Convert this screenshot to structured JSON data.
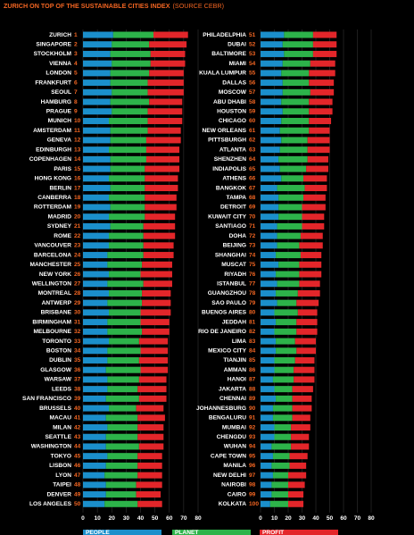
{
  "chart_data": {
    "type": "stacked-barh",
    "title": "ZURICH ON TOP OF THE SUSTAINABLE CITIES INDEX",
    "subtitle": "(SOURCE CEBR)",
    "categories": [
      "ZURICH",
      "SINGAPORE",
      "STOCKHOLM",
      "VIENNA",
      "LONDON",
      "FRANKFURT",
      "SEOUL",
      "HAMBURG",
      "PRAGUE",
      "MUNICH",
      "AMSTERDAM",
      "GENEVA",
      "EDINBURGH",
      "COPENHAGEN",
      "PARIS",
      "HONG KONG",
      "BERLIN",
      "CANBERRA",
      "ROTTERDAM",
      "MADRID",
      "SYDNEY",
      "ROME",
      "VANCOUVER",
      "BARCELONA",
      "MANCHESTER",
      "NEW YORK",
      "WELLINGTON",
      "MONTREAL",
      "ANTWERP",
      "BRISBANE",
      "BIRMINGHAM",
      "MELBOURNE",
      "TORONTO",
      "BOSTON",
      "DUBLIN",
      "GLASGOW",
      "WARSAW",
      "LEEDS",
      "SAN FRANCISCO",
      "BRUSSELS",
      "MACAU",
      "MILAN",
      "SEATTLE",
      "WASHINGTON",
      "TOKYO",
      "LISBON",
      "LYON",
      "TAIPEI",
      "DENVER",
      "LOS ANGELES",
      "PHILADELPHIA",
      "DUBAI",
      "BALTIMORE",
      "MIAMI",
      "KUALA LUMPUR",
      "DALLAS",
      "MOSCOW",
      "ABU DHABI",
      "HOUSTON",
      "CHICAGO",
      "NEW ORLEANS",
      "PITTSBURGH",
      "ATLANTA",
      "SHENZHEN",
      "INDIAPOLIS",
      "ATHENS",
      "BANGKOK",
      "TAMPA",
      "DETROIT",
      "KUWAIT CITY",
      "SANTIAGO",
      "DOHA",
      "BEIJING",
      "SHANGHAI",
      "MUSCAT",
      "RIYADH",
      "ISTANBUL",
      "GUANGZHOU",
      "SAO PAULO",
      "BUENOS AIRES",
      "JEDDAH",
      "RIO DE JANEIRO",
      "LIMA",
      "MEXICO CITY",
      "TIANJIN",
      "AMMAN",
      "HANOI",
      "JAKARTA",
      "CHENNAI",
      "JOHANNESBURG",
      "BENGALURU",
      "MUMBAI",
      "CHENGDU",
      "WUHAN",
      "CAPE TOWN",
      "MANILA",
      "NEW DELHI",
      "NAIROBI",
      "CAIRO",
      "KOLKATA"
    ],
    "ranks": [
      1,
      2,
      3,
      4,
      5,
      6,
      7,
      8,
      9,
      10,
      11,
      12,
      13,
      14,
      15,
      16,
      17,
      18,
      19,
      20,
      21,
      22,
      23,
      24,
      25,
      26,
      27,
      28,
      29,
      30,
      31,
      32,
      33,
      34,
      35,
      36,
      37,
      38,
      39,
      40,
      41,
      42,
      43,
      44,
      45,
      46,
      47,
      48,
      49,
      50,
      51,
      52,
      53,
      54,
      55,
      56,
      57,
      58,
      59,
      60,
      61,
      62,
      63,
      64,
      65,
      66,
      67,
      68,
      69,
      70,
      71,
      72,
      73,
      74,
      75,
      76,
      77,
      78,
      79,
      80,
      81,
      82,
      83,
      84,
      85,
      86,
      87,
      88,
      89,
      90,
      91,
      92,
      93,
      94,
      95,
      96,
      97,
      98,
      99,
      100
    ],
    "series": [
      {
        "name": "PEOPLE",
        "color": "#1b8fcb",
        "values": [
          21,
          20,
          19,
          20,
          19,
          19,
          20,
          19,
          20,
          18,
          19,
          19,
          18,
          19,
          19,
          18,
          19,
          18,
          19,
          18,
          19,
          18,
          18,
          17,
          17,
          18,
          17,
          18,
          17,
          18,
          17,
          17,
          18,
          17,
          17,
          16,
          17,
          17,
          16,
          18,
          16,
          17,
          16,
          16,
          17,
          16,
          15,
          16,
          16,
          15,
          17,
          16,
          17,
          16,
          15,
          16,
          16,
          15,
          16,
          15,
          14,
          15,
          14,
          13,
          14,
          15,
          12,
          13,
          13,
          13,
          12,
          12,
          12,
          11,
          13,
          11,
          12,
          11,
          12,
          10,
          11,
          10,
          11,
          11,
          10,
          10,
          9,
          10,
          11,
          9,
          9,
          10,
          10,
          8,
          9,
          8,
          9,
          8,
          8,
          7
        ]
      },
      {
        "name": "PLANET",
        "color": "#2db34a",
        "values": [
          28,
          26,
          28,
          27,
          27,
          26,
          25,
          27,
          25,
          27,
          26,
          25,
          26,
          25,
          24,
          25,
          24,
          25,
          24,
          25,
          23,
          24,
          24,
          25,
          24,
          22,
          25,
          23,
          24,
          22,
          23,
          24,
          21,
          23,
          22,
          24,
          22,
          21,
          23,
          19,
          22,
          21,
          22,
          23,
          21,
          22,
          23,
          21,
          21,
          23,
          21,
          22,
          21,
          20,
          20,
          19,
          20,
          20,
          19,
          20,
          21,
          19,
          20,
          21,
          19,
          16,
          20,
          18,
          17,
          17,
          18,
          17,
          16,
          18,
          15,
          17,
          16,
          16,
          14,
          17,
          15,
          16,
          14,
          15,
          15,
          14,
          15,
          13,
          12,
          14,
          14,
          12,
          12,
          14,
          12,
          13,
          11,
          12,
          12,
          13
        ]
      },
      {
        "name": "PROFIT",
        "color": "#e3262a",
        "values": [
          24,
          26,
          24,
          24,
          24,
          25,
          25,
          23,
          24,
          24,
          23,
          24,
          23,
          23,
          24,
          23,
          23,
          22,
          22,
          21,
          22,
          22,
          21,
          21,
          21,
          22,
          20,
          20,
          20,
          21,
          20,
          19,
          20,
          19,
          20,
          19,
          19,
          20,
          19,
          19,
          19,
          18,
          18,
          17,
          17,
          17,
          17,
          18,
          17,
          17,
          17,
          17,
          17,
          18,
          19,
          18,
          17,
          17,
          17,
          16,
          15,
          16,
          16,
          15,
          16,
          17,
          16,
          16,
          17,
          16,
          16,
          16,
          17,
          15,
          16,
          16,
          15,
          16,
          16,
          14,
          15,
          15,
          15,
          14,
          14,
          15,
          15,
          15,
          14,
          14,
          13,
          14,
          13,
          13,
          13,
          12,
          13,
          12,
          11,
          11
        ]
      }
    ],
    "xlim": [
      0,
      80
    ],
    "xticks": [
      0,
      10,
      20,
      30,
      40,
      50,
      60,
      70,
      80
    ],
    "grid": true
  }
}
